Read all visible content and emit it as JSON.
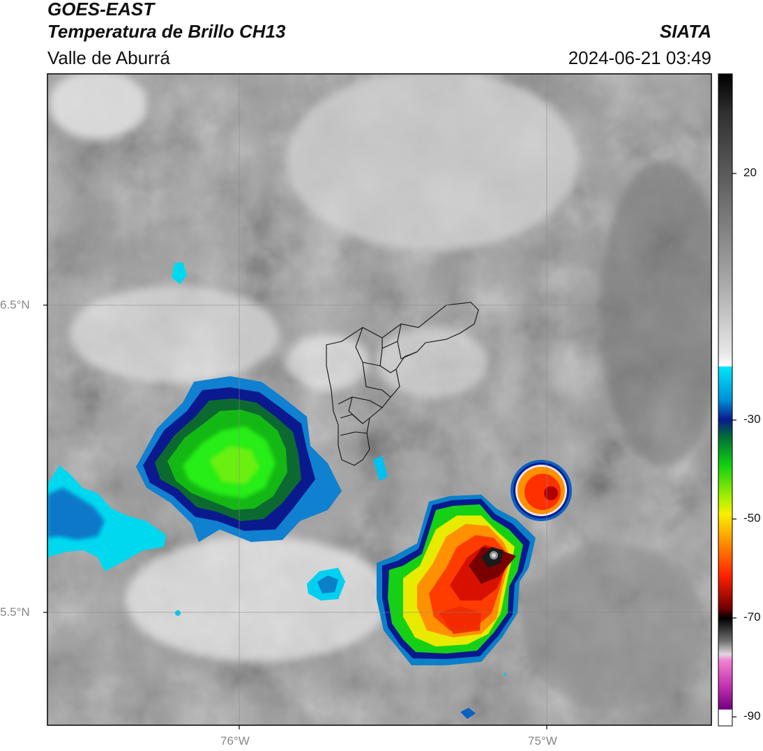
{
  "header": {
    "satellite": "GOES-EAST",
    "product": "Temperatura de Brillo CH13",
    "region": "Valle de Aburrá",
    "agency": "SIATA",
    "datetime": "2024-06-21 03:49"
  },
  "map": {
    "lon_labels": [
      "76°W",
      "75°W"
    ],
    "lat_labels": [
      "6.5°N",
      "5.5°N"
    ]
  },
  "colorbar": {
    "ticks": [
      "20",
      "-30",
      "-50",
      "-70",
      "-90"
    ],
    "range": [
      -92,
      36
    ],
    "colors": {
      "cyan": "#00c8e8",
      "navy": "#0a1a6e",
      "green": "#1ee61e",
      "yellow": "#f0e400",
      "orange": "#ff8a00",
      "red": "#e81800",
      "darkred": "#5a0000",
      "magenta": "#d040c0"
    }
  }
}
